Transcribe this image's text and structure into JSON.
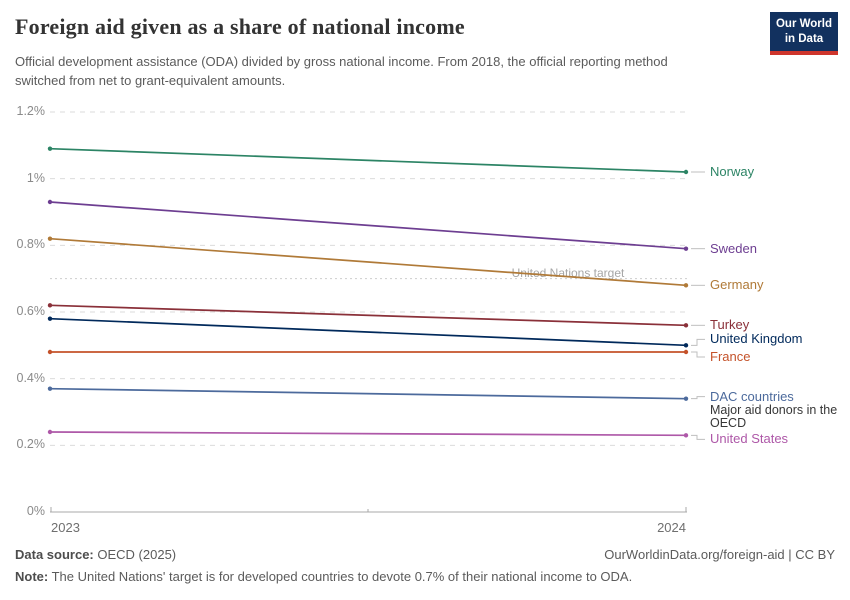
{
  "header": {
    "title": "Foreign aid given as a share of national income",
    "subtitle": "Official development assistance (ODA) divided by gross national income. From 2018, the official reporting method switched from net to grant-equivalent amounts.",
    "logo": {
      "line1": "Our World",
      "line2": "in Data",
      "bg_color": "#12315F",
      "bar_color": "#CE352C"
    }
  },
  "chart_data": {
    "type": "line",
    "x": [
      2023,
      2024
    ],
    "x_tick_labels": [
      "2023",
      "2024"
    ],
    "y_ticks": [
      0,
      0.2,
      0.4,
      0.6,
      0.8,
      1.0,
      1.2
    ],
    "y_tick_labels": [
      "0%",
      "0.2%",
      "0.4%",
      "0.6%",
      "0.8%",
      "1%",
      "1.2%"
    ],
    "ylim": [
      0,
      1.2
    ],
    "unit": "% of gross national income",
    "grid": "horizontal dashed",
    "legend_position": "right of lines, direct labels",
    "annotation": {
      "label": "United Nations target",
      "value": 0.7
    },
    "series": [
      {
        "name": "Norway",
        "values": [
          1.09,
          1.02
        ],
        "color": "#2C8465"
      },
      {
        "name": "Sweden",
        "values": [
          0.93,
          0.79
        ],
        "color": "#6D3E91"
      },
      {
        "name": "Germany",
        "values": [
          0.82,
          0.68
        ],
        "color": "#B07A38"
      },
      {
        "name": "Turkey",
        "values": [
          0.62,
          0.56
        ],
        "color": "#8A3039"
      },
      {
        "name": "United Kingdom",
        "values": [
          0.58,
          0.5
        ],
        "color": "#00295B"
      },
      {
        "name": "France",
        "values": [
          0.48,
          0.48
        ],
        "color": "#C4522A"
      },
      {
        "name": "DAC countries",
        "values": [
          0.37,
          0.34
        ],
        "color": "#4C6A9C",
        "sublabel": "Major aid donors in the OECD"
      },
      {
        "name": "United States",
        "values": [
          0.24,
          0.23
        ],
        "color": "#AE58A8"
      }
    ]
  },
  "footer": {
    "source_label": "Data source:",
    "source_value": "OECD (2025)",
    "credit": "OurWorldinData.org/foreign-aid | CC BY",
    "note_label": "Note:",
    "note_text": "The United Nations' target is for developed countries to devote 0.7% of their national income to ODA."
  }
}
